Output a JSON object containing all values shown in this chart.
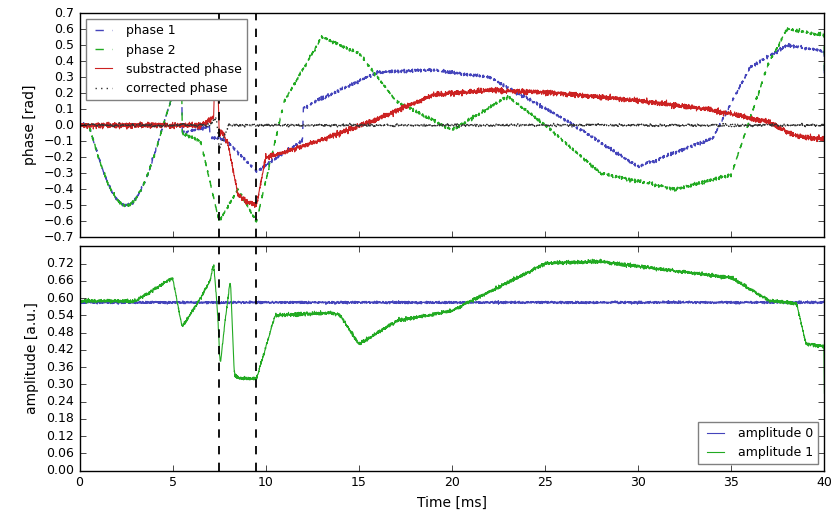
{
  "title": "",
  "xlim": [
    0,
    40
  ],
  "phase_ylim": [
    -0.7,
    0.7
  ],
  "amp_ylim": [
    0.0,
    0.78
  ],
  "xlabel": "Time [ms]",
  "ylabel_phase": "phase [rad]",
  "ylabel_amp": "amplitude [a.u.]",
  "vlines": [
    7.5,
    9.5
  ],
  "amp_yticks": [
    0.0,
    0.06,
    0.12,
    0.18,
    0.24,
    0.3,
    0.36,
    0.42,
    0.48,
    0.54,
    0.6,
    0.66,
    0.72
  ],
  "phase_yticks": [
    -0.7,
    -0.6,
    -0.5,
    -0.4,
    -0.3,
    -0.2,
    -0.1,
    0.0,
    0.1,
    0.2,
    0.3,
    0.4,
    0.5,
    0.6,
    0.7
  ],
  "xticks": [
    0,
    5,
    10,
    15,
    20,
    25,
    30,
    35,
    40
  ],
  "color_phase1": "#4444bb",
  "color_phase2": "#22aa22",
  "color_sub": "#cc2222",
  "color_corr": "#333333",
  "color_amp0": "#4444bb",
  "color_amp1": "#22aa22",
  "legend_phase_loc": "upper left",
  "legend_amp_loc": "lower right",
  "figsize": [
    8.37,
    5.23
  ],
  "dpi": 100
}
